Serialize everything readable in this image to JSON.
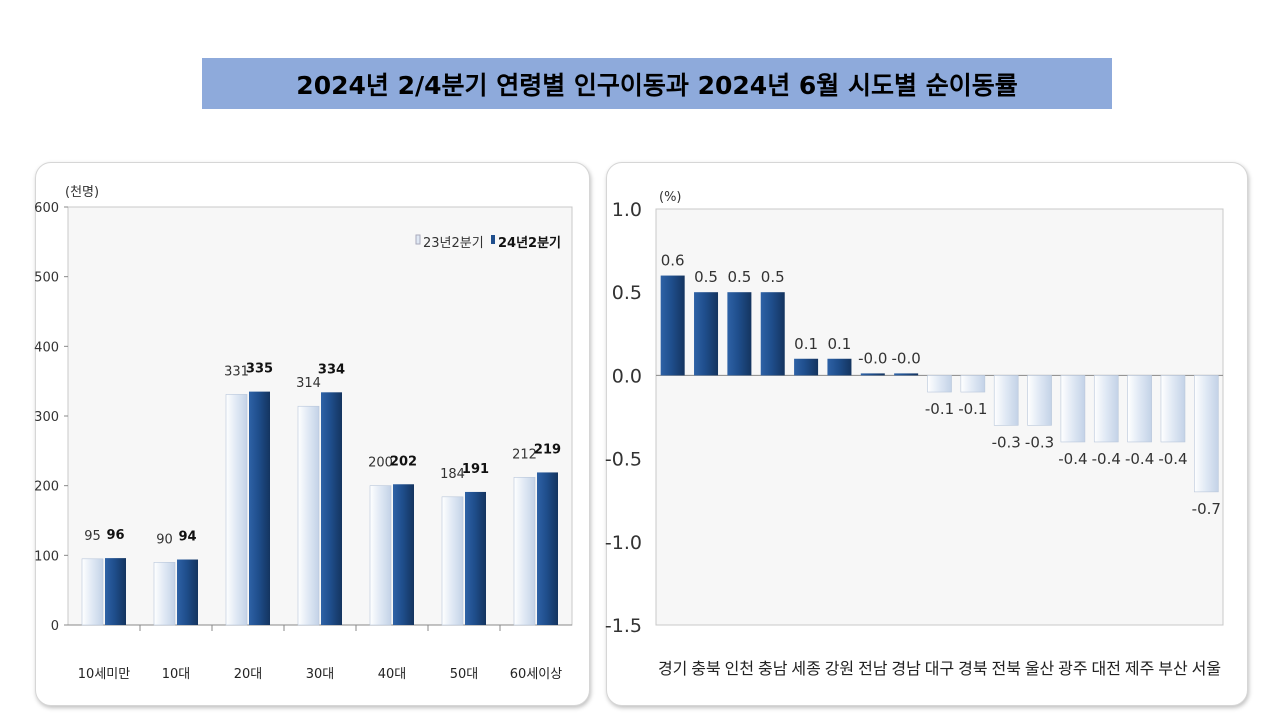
{
  "page_title": "2024년 2/4분기 연령별 인구이동과 2024년 6월 시도별 순이동률",
  "colors": {
    "title_bg": "#8eaadb",
    "bar_2023": "#dfe8f4",
    "bar_2024": "#1f4e8c"
  },
  "chart_data": [
    {
      "type": "bar",
      "unit_label": "(천명)",
      "categories": [
        "10세미만",
        "10대",
        "20대",
        "30대",
        "40대",
        "50대",
        "60세이상"
      ],
      "series": [
        {
          "name": "23년2분기",
          "values": [
            95,
            90,
            331,
            314,
            200,
            184,
            212
          ]
        },
        {
          "name": "24년2분기",
          "values": [
            96,
            94,
            335,
            334,
            202,
            191,
            219
          ]
        }
      ],
      "ylim": [
        0,
        600
      ],
      "yticks": [
        "0",
        "100",
        "200",
        "300",
        "400",
        "500",
        "600"
      ],
      "legend": "top-right",
      "grid": false
    },
    {
      "type": "bar",
      "unit_label": "(%)",
      "categories": [
        "경기",
        "충북",
        "인천",
        "충남",
        "세종",
        "강원",
        "전남",
        "경남",
        "대구",
        "경북",
        "전북",
        "울산",
        "광주",
        "대전",
        "제주",
        "부산",
        "서울"
      ],
      "values": [
        0.6,
        0.5,
        0.5,
        0.5,
        0.1,
        0.1,
        -0.0,
        -0.0,
        -0.1,
        -0.1,
        -0.3,
        -0.3,
        -0.4,
        -0.4,
        -0.4,
        -0.4,
        -0.7
      ],
      "labels": [
        "0.6",
        "0.5",
        "0.5",
        "0.5",
        "0.1",
        "0.1",
        "-0.0",
        "-0.0",
        "-0.1",
        "-0.1",
        "-0.3",
        "-0.3",
        "-0.4",
        "-0.4",
        "-0.4",
        "-0.4",
        "-0.7"
      ],
      "ylim": [
        -1.5,
        1.0
      ],
      "yticks": [
        "1.0",
        "0.5",
        "0.0",
        "-0.5",
        "-1.0",
        "-1.5"
      ],
      "grid": false
    }
  ]
}
